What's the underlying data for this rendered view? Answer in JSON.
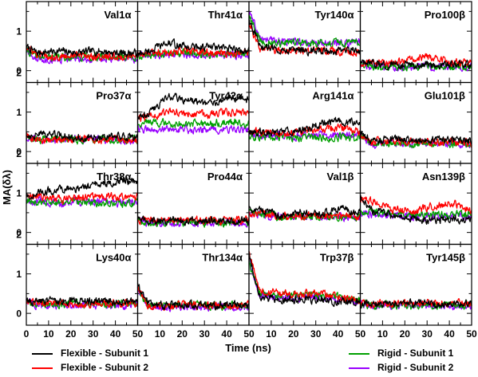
{
  "chart_data": {
    "type": "line",
    "ylabel": "MA(δλ)",
    "xlabel": "Time (ns)",
    "xlim": [
      0,
      50
    ],
    "ylim": [
      -0.3,
      1.75
    ],
    "x_ticks": [
      "0",
      "10",
      "20",
      "30",
      "40",
      "50"
    ],
    "y_ticks": [
      "0",
      "1",
      "2"
    ],
    "grid": false,
    "legend_position": "bottom",
    "series": [
      {
        "name": "Flexible - Subunit 1",
        "color": "#000000"
      },
      {
        "name": "Flexible - Subunit 2",
        "color": "#ff0000"
      },
      {
        "name": "Rigid - Subunit 1",
        "color": "#00a000"
      },
      {
        "name": "Rigid - Subunit 2",
        "color": "#9900ff"
      }
    ],
    "panels": [
      {
        "title": "Val1α",
        "levels": [
          {
            "start": 0.6,
            "values": [
              0.45,
              0.5,
              0.45,
              0.5,
              0.45,
              0.45
            ]
          },
          {
            "start": 0.6,
            "values": [
              0.4,
              0.35,
              0.4,
              0.35,
              0.35,
              0.35
            ]
          },
          {
            "start": 0.5,
            "values": [
              0.35,
              0.35,
              0.35,
              0.35,
              0.35,
              0.35
            ]
          },
          {
            "start": 0.5,
            "values": [
              0.3,
              0.3,
              0.3,
              0.3,
              0.3,
              0.3
            ]
          }
        ]
      },
      {
        "title": "Thr41α",
        "levels": [
          {
            "start": 0.4,
            "values": [
              0.5,
              0.7,
              0.6,
              0.6,
              0.55,
              0.5
            ]
          },
          {
            "start": 0.4,
            "values": [
              0.45,
              0.45,
              0.5,
              0.45,
              0.45,
              0.45
            ]
          },
          {
            "start": 0.4,
            "values": [
              0.4,
              0.45,
              0.45,
              0.4,
              0.45,
              0.45
            ]
          },
          {
            "start": 0.4,
            "values": [
              0.4,
              0.4,
              0.4,
              0.4,
              0.4,
              0.4
            ]
          }
        ]
      },
      {
        "title": "Tyr140α",
        "levels": [
          {
            "start": 1.3,
            "values": [
              0.6,
              0.55,
              0.5,
              0.5,
              0.5,
              0.5
            ]
          },
          {
            "start": 1.2,
            "values": [
              0.55,
              0.5,
              0.5,
              0.5,
              0.5,
              0.45
            ]
          },
          {
            "start": 1.4,
            "values": [
              0.75,
              0.7,
              0.7,
              0.7,
              0.7,
              0.7
            ]
          },
          {
            "start": 1.5,
            "values": [
              0.8,
              0.75,
              0.7,
              0.7,
              0.7,
              0.75
            ]
          }
        ]
      },
      {
        "title": "Pro100β",
        "levels": [
          {
            "start": 0.2,
            "values": [
              0.15,
              0.15,
              0.15,
              0.15,
              0.15,
              0.15
            ]
          },
          {
            "start": 0.2,
            "values": [
              0.2,
              0.15,
              0.3,
              0.35,
              0.2,
              0.2
            ]
          },
          {
            "start": 0.15,
            "values": [
              0.1,
              0.1,
              0.1,
              0.1,
              0.1,
              0.1
            ]
          },
          {
            "start": 0.15,
            "values": [
              0.1,
              0.1,
              0.1,
              0.1,
              0.1,
              0.1
            ]
          }
        ]
      },
      {
        "title": "Pro37α",
        "levels": [
          {
            "start": 0.4,
            "values": [
              0.45,
              0.4,
              0.35,
              0.35,
              0.4,
              0.35
            ]
          },
          {
            "start": 0.4,
            "values": [
              0.3,
              0.3,
              0.3,
              0.3,
              0.3,
              0.3
            ]
          },
          {
            "start": 0.35,
            "values": [
              0.3,
              0.3,
              0.3,
              0.3,
              0.3,
              0.3
            ]
          },
          {
            "start": 0.35,
            "values": [
              0.3,
              0.3,
              0.3,
              0.3,
              0.3,
              0.25
            ]
          }
        ]
      },
      {
        "title": "Tyr42α",
        "levels": [
          {
            "start": 0.9,
            "values": [
              1.0,
              1.4,
              1.3,
              1.2,
              1.4,
              1.3
            ]
          },
          {
            "start": 0.8,
            "values": [
              0.9,
              1.0,
              0.95,
              0.95,
              1.0,
              1.0
            ]
          },
          {
            "start": 0.7,
            "values": [
              0.75,
              0.7,
              0.7,
              0.7,
              0.75,
              0.7
            ]
          },
          {
            "start": 0.6,
            "values": [
              0.55,
              0.55,
              0.55,
              0.55,
              0.55,
              0.55
            ]
          }
        ]
      },
      {
        "title": "Arg141α",
        "levels": [
          {
            "start": 0.5,
            "values": [
              0.5,
              0.5,
              0.55,
              0.7,
              0.8,
              0.7
            ]
          },
          {
            "start": 0.5,
            "values": [
              0.5,
              0.45,
              0.5,
              0.55,
              0.6,
              0.5
            ]
          },
          {
            "start": 0.4,
            "values": [
              0.4,
              0.35,
              0.35,
              0.35,
              0.35,
              0.35
            ]
          },
          {
            "start": 0.4,
            "values": [
              0.4,
              0.4,
              0.4,
              0.4,
              0.4,
              0.4
            ]
          }
        ]
      },
      {
        "title": "Glu101β",
        "levels": [
          {
            "start": 0.5,
            "values": [
              0.3,
              0.3,
              0.3,
              0.3,
              0.3,
              0.25
            ]
          },
          {
            "start": 0.4,
            "values": [
              0.25,
              0.25,
              0.25,
              0.25,
              0.25,
              0.2
            ]
          },
          {
            "start": 0.4,
            "values": [
              0.2,
              0.2,
              0.2,
              0.2,
              0.2,
              0.2
            ]
          },
          {
            "start": 0.4,
            "values": [
              0.2,
              0.2,
              0.2,
              0.2,
              0.2,
              0.2
            ]
          }
        ]
      },
      {
        "title": "Thr38α",
        "levels": [
          {
            "start": 0.9,
            "values": [
              1.0,
              1.1,
              1.1,
              1.2,
              1.3,
              1.3
            ]
          },
          {
            "start": 0.9,
            "values": [
              0.9,
              0.85,
              0.9,
              0.9,
              0.9,
              0.9
            ]
          },
          {
            "start": 0.8,
            "values": [
              0.75,
              0.75,
              0.75,
              0.75,
              0.75,
              0.75
            ]
          },
          {
            "start": 0.8,
            "values": [
              0.8,
              0.75,
              0.8,
              0.8,
              0.75,
              0.8
            ]
          }
        ]
      },
      {
        "title": "Pro44α",
        "levels": [
          {
            "start": 0.3,
            "values": [
              0.3,
              0.3,
              0.3,
              0.3,
              0.3,
              0.3
            ]
          },
          {
            "start": 0.3,
            "values": [
              0.3,
              0.3,
              0.3,
              0.3,
              0.3,
              0.3
            ]
          },
          {
            "start": 0.3,
            "values": [
              0.25,
              0.25,
              0.25,
              0.25,
              0.25,
              0.25
            ]
          },
          {
            "start": 0.3,
            "values": [
              0.25,
              0.25,
              0.25,
              0.25,
              0.25,
              0.25
            ]
          }
        ]
      },
      {
        "title": "Val1β",
        "levels": [
          {
            "start": 0.6,
            "values": [
              0.6,
              0.4,
              0.5,
              0.45,
              0.6,
              0.5
            ]
          },
          {
            "start": 0.5,
            "values": [
              0.5,
              0.4,
              0.4,
              0.45,
              0.4,
              0.4
            ]
          },
          {
            "start": 0.5,
            "values": [
              0.45,
              0.4,
              0.4,
              0.4,
              0.4,
              0.4
            ]
          },
          {
            "start": 0.5,
            "values": [
              0.45,
              0.4,
              0.4,
              0.4,
              0.4,
              0.35
            ]
          }
        ]
      },
      {
        "title": "Asn139β",
        "levels": [
          {
            "start": 0.9,
            "values": [
              0.6,
              0.4,
              0.35,
              0.3,
              0.35,
              0.3
            ]
          },
          {
            "start": 0.8,
            "values": [
              0.8,
              0.6,
              0.5,
              0.65,
              0.75,
              0.55
            ]
          },
          {
            "start": 0.5,
            "values": [
              0.5,
              0.45,
              0.45,
              0.45,
              0.45,
              0.45
            ]
          },
          {
            "start": 0.5,
            "values": [
              0.45,
              0.45,
              0.4,
              0.4,
              0.4,
              0.45
            ]
          }
        ]
      },
      {
        "title": "Lys40α",
        "levels": [
          {
            "start": 0.3,
            "values": [
              0.3,
              0.3,
              0.3,
              0.3,
              0.3,
              0.3
            ]
          },
          {
            "start": 0.3,
            "values": [
              0.25,
              0.25,
              0.25,
              0.25,
              0.25,
              0.25
            ]
          },
          {
            "start": 0.3,
            "values": [
              0.25,
              0.25,
              0.25,
              0.25,
              0.25,
              0.25
            ]
          },
          {
            "start": 0.3,
            "values": [
              0.2,
              0.2,
              0.2,
              0.2,
              0.2,
              0.2
            ]
          }
        ]
      },
      {
        "title": "Thr134α",
        "levels": [
          {
            "start": 0.7,
            "values": [
              0.25,
              0.2,
              0.2,
              0.2,
              0.2,
              0.2
            ]
          },
          {
            "start": 0.6,
            "values": [
              0.2,
              0.2,
              0.2,
              0.2,
              0.2,
              0.2
            ]
          },
          {
            "start": 0.6,
            "values": [
              0.2,
              0.2,
              0.2,
              0.2,
              0.2,
              0.2
            ]
          },
          {
            "start": 0.6,
            "values": [
              0.2,
              0.15,
              0.15,
              0.15,
              0.15,
              0.15
            ]
          }
        ]
      },
      {
        "title": "Trp37β",
        "levels": [
          {
            "start": 1.5,
            "values": [
              0.4,
              0.35,
              0.35,
              0.35,
              0.3,
              0.3
            ]
          },
          {
            "start": 1.5,
            "values": [
              0.6,
              0.5,
              0.5,
              0.5,
              0.4,
              0.3
            ]
          },
          {
            "start": 1.3,
            "values": [
              0.5,
              0.45,
              0.45,
              0.45,
              0.4,
              0.35
            ]
          },
          {
            "start": 1.3,
            "values": [
              0.45,
              0.4,
              0.4,
              0.4,
              0.35,
              0.3
            ]
          }
        ]
      },
      {
        "title": "Tyr145β",
        "levels": [
          {
            "start": 0.25,
            "values": [
              0.25,
              0.25,
              0.25,
              0.25,
              0.25,
              0.25
            ]
          },
          {
            "start": 0.25,
            "values": [
              0.25,
              0.25,
              0.25,
              0.25,
              0.25,
              0.25
            ]
          },
          {
            "start": 0.25,
            "values": [
              0.2,
              0.2,
              0.2,
              0.2,
              0.2,
              0.2
            ]
          },
          {
            "start": 0.25,
            "values": [
              0.2,
              0.2,
              0.2,
              0.2,
              0.2,
              0.2
            ]
          }
        ]
      }
    ]
  }
}
